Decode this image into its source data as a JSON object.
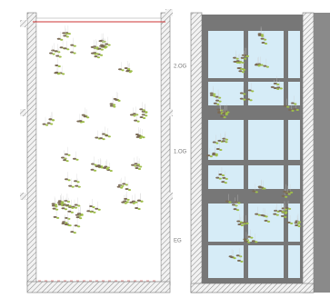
{
  "levels": [
    "2.OG",
    "1.OG",
    "EG"
  ]
}
